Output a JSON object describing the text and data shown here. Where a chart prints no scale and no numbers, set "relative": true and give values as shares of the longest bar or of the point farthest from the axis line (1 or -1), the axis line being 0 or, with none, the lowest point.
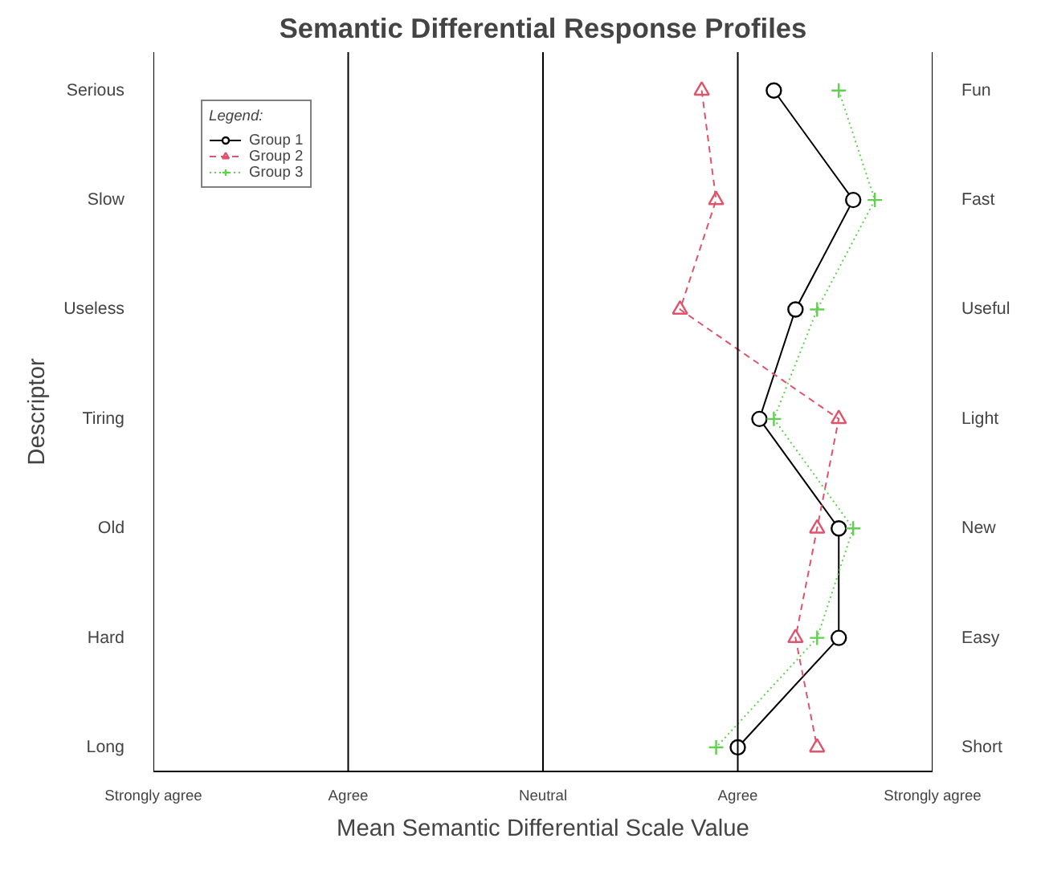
{
  "chart_data": {
    "type": "line",
    "orientation": "horizontal",
    "relative": true,
    "title": "Semantic Differential Response Profiles",
    "xlabel": "Mean Semantic Differential Scale Value",
    "ylabel": "Descriptor",
    "legend_title": "Legend:",
    "categories": [
      "Serious",
      "Slow",
      "Useless",
      "Tiring",
      "Old",
      "Hard",
      "Long"
    ],
    "y2_categories": [
      "Fun",
      "Fast",
      "Useful",
      "Light",
      "New",
      "Easy",
      "Short"
    ],
    "ref_lines": [
      {
        "axis": "x",
        "value": 0,
        "label": "Strongly agree",
        "color": "#000000",
        "line_style": "solid"
      },
      {
        "axis": "x",
        "value": 0.27,
        "label": "Agree",
        "color": "#000000",
        "line_style": "solid"
      },
      {
        "axis": "x",
        "value": 0.54,
        "label": "Neutral",
        "color": "#000000",
        "line_style": "solid"
      },
      {
        "axis": "x",
        "value": 0.81,
        "label": "Agree",
        "color": "#000000",
        "line_style": "solid"
      },
      {
        "axis": "x",
        "value": 1.08,
        "label": "Strongly agree",
        "color": "#000000",
        "line_style": "solid"
      }
    ],
    "legend": "top left",
    "series": [
      {
        "name": "Group 1",
        "color": "#000000",
        "marker": "circle",
        "line_style": "solid",
        "values": [
          0.86,
          0.97,
          0.89,
          0.84,
          0.95,
          0.95,
          0.81
        ]
      },
      {
        "name": "Group 2",
        "color": "#df536b",
        "marker": "triangle",
        "line_style": "dashed",
        "values": [
          0.76,
          0.78,
          0.73,
          0.95,
          0.92,
          0.89,
          0.92
        ]
      },
      {
        "name": "Group 3",
        "color": "#61d04f",
        "marker": "cross",
        "line_style": "dotted",
        "values": [
          0.95,
          1,
          0.92,
          0.86,
          0.97,
          0.92,
          0.78
        ]
      }
    ]
  }
}
